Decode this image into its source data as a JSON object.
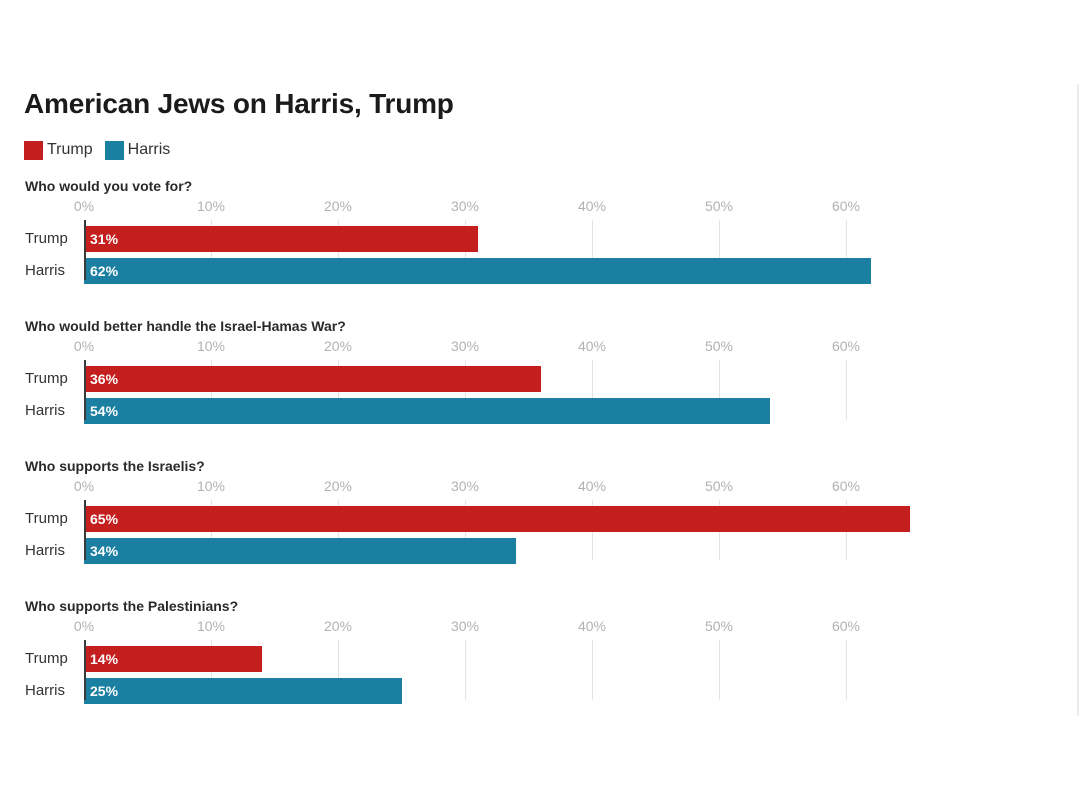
{
  "chart_data": {
    "type": "bar",
    "orientation": "horizontal",
    "title": "American Jews on Harris, Trump",
    "legend": {
      "placement": "top-left",
      "entries": [
        {
          "name": "Trump",
          "color": "#c41e1e"
        },
        {
          "name": "Harris",
          "color": "#1b7fa1"
        }
      ]
    },
    "xlim": [
      0,
      65
    ],
    "ticks": [
      0,
      10,
      20,
      30,
      40,
      50,
      60
    ],
    "tick_labels": [
      "0%",
      "10%",
      "20%",
      "30%",
      "40%",
      "50%",
      "60%"
    ],
    "grid": true,
    "categories": [
      "Trump",
      "Harris"
    ],
    "panels": [
      {
        "question": "Who would you vote for?",
        "values": [
          31,
          62
        ],
        "labels": [
          "31%",
          "62%"
        ]
      },
      {
        "question": "Who would better handle the Israel-Hamas War?",
        "values": [
          36,
          54
        ],
        "labels": [
          "36%",
          "54%"
        ]
      },
      {
        "question": "Who supports the Israelis?",
        "values": [
          65,
          34
        ],
        "labels": [
          "65%",
          "34%"
        ]
      },
      {
        "question": "Who supports the Palestinians?",
        "values": [
          14,
          25
        ],
        "labels": [
          "14%",
          "25%"
        ]
      }
    ]
  }
}
